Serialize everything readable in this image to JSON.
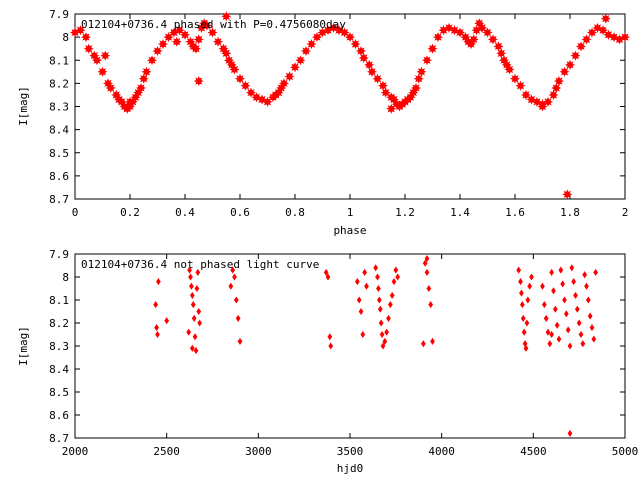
{
  "chart_data": [
    {
      "type": "scatter",
      "title": "012104+0736.4 phased with P=0.4756080day",
      "xlabel": "phase",
      "ylabel": "I[mag]",
      "xlim": [
        0,
        2
      ],
      "ylim": [
        8.7,
        7.9
      ],
      "y_inverted": true,
      "xticks": [
        "0",
        "0.2",
        "0.4",
        "0.6",
        "0.8",
        "1",
        "1.2",
        "1.4",
        "1.6",
        "1.8",
        "2"
      ],
      "yticks": [
        "7.9",
        "8",
        "8.1",
        "8.2",
        "8.3",
        "8.4",
        "8.5",
        "8.6",
        "8.7"
      ],
      "marker": "star",
      "color": "#ff0000",
      "grid": false,
      "series": [
        {
          "x": [
            0.0,
            0.02,
            0.04,
            0.05,
            0.07,
            0.08,
            0.1,
            0.12,
            0.13,
            0.15,
            0.16,
            0.17,
            0.18,
            0.19,
            0.2,
            0.21,
            0.22,
            0.23,
            0.24,
            0.25,
            0.26,
            0.28,
            0.3,
            0.32,
            0.34,
            0.36,
            0.38,
            0.4,
            0.42,
            0.43,
            0.44,
            0.45,
            0.46,
            0.47,
            0.48,
            0.5,
            0.52,
            0.54,
            0.55,
            0.56,
            0.57,
            0.58,
            0.6,
            0.62,
            0.64,
            0.66,
            0.68,
            0.7,
            0.72,
            0.74,
            0.75,
            0.76,
            0.78,
            0.8,
            0.82,
            0.84,
            0.86,
            0.88,
            0.9,
            0.92,
            0.94,
            0.96,
            0.98,
            1.0,
            1.02,
            1.04,
            1.05,
            1.07,
            1.08,
            1.1,
            1.12,
            1.13,
            1.15,
            1.16,
            1.17,
            1.18,
            1.19,
            1.2,
            1.21,
            1.22,
            1.23,
            1.24,
            1.25,
            1.26,
            1.28,
            1.3,
            1.32,
            1.34,
            1.36,
            1.38,
            1.4,
            1.42,
            1.43,
            1.44,
            1.45,
            1.46,
            1.47,
            1.48,
            1.5,
            1.52,
            1.54,
            1.55,
            1.56,
            1.57,
            1.58,
            1.6,
            1.62,
            1.64,
            1.66,
            1.68,
            1.7,
            1.72,
            1.74,
            1.75,
            1.76,
            1.78,
            1.79,
            1.8,
            1.82,
            1.84,
            1.86,
            1.88,
            1.9,
            1.92,
            1.94,
            1.96,
            1.98,
            2.0,
            0.45,
            0.2,
            0.73,
            0.55,
            0.11,
            1.15,
            1.48,
            1.7,
            1.93,
            0.37
          ],
          "y": [
            7.98,
            7.97,
            8.0,
            8.05,
            8.08,
            8.1,
            8.15,
            8.2,
            8.22,
            8.25,
            8.27,
            8.28,
            8.3,
            8.31,
            8.3,
            8.28,
            8.26,
            8.24,
            8.22,
            8.18,
            8.15,
            8.1,
            8.06,
            8.03,
            8.0,
            7.98,
            7.97,
            7.99,
            8.02,
            8.04,
            8.05,
            8.01,
            7.96,
            7.94,
            7.95,
            7.98,
            8.02,
            8.05,
            8.07,
            8.1,
            8.12,
            8.14,
            8.18,
            8.21,
            8.24,
            8.26,
            8.27,
            8.28,
            8.26,
            8.24,
            8.22,
            8.2,
            8.17,
            8.13,
            8.1,
            8.06,
            8.03,
            8.0,
            7.98,
            7.97,
            7.96,
            7.97,
            7.98,
            8.0,
            8.03,
            8.06,
            8.09,
            8.12,
            8.15,
            8.18,
            8.21,
            8.24,
            8.26,
            8.27,
            8.29,
            8.3,
            8.29,
            8.28,
            8.27,
            8.26,
            8.24,
            8.22,
            8.18,
            8.15,
            8.1,
            8.05,
            8.0,
            7.97,
            7.96,
            7.97,
            7.98,
            8.0,
            8.02,
            8.03,
            8.01,
            7.97,
            7.94,
            7.96,
            7.98,
            8.01,
            8.04,
            8.07,
            8.1,
            8.12,
            8.14,
            8.18,
            8.21,
            8.25,
            8.27,
            8.28,
            8.3,
            8.28,
            8.25,
            8.22,
            8.19,
            8.15,
            8.68,
            8.12,
            8.08,
            8.04,
            8.01,
            7.98,
            7.96,
            7.97,
            7.99,
            8.0,
            8.01,
            8.0,
            8.19,
            8.28,
            8.25,
            7.91,
            8.08,
            8.31,
            7.96,
            8.29,
            7.92,
            8.02
          ]
        }
      ]
    },
    {
      "type": "scatter",
      "title": "012104+0736.4 not phased light curve",
      "xlabel": "hjd0",
      "ylabel": "I[mag]",
      "xlim": [
        2000,
        5000
      ],
      "ylim": [
        8.7,
        7.9
      ],
      "y_inverted": true,
      "xticks": [
        "2000",
        "2500",
        "3000",
        "3500",
        "4000",
        "4500",
        "5000"
      ],
      "yticks": [
        "7.9",
        "8",
        "8.1",
        "8.2",
        "8.3",
        "8.4",
        "8.5",
        "8.6",
        "8.7"
      ],
      "marker": "diamond",
      "color": "#ff0000",
      "grid": false,
      "series": [
        {
          "x": [
            2440,
            2445,
            2450,
            2455,
            2500,
            2620,
            2625,
            2630,
            2635,
            2640,
            2645,
            2650,
            2655,
            2660,
            2665,
            2670,
            2675,
            2680,
            2850,
            2860,
            2870,
            2880,
            2890,
            2900,
            3370,
            3380,
            3390,
            3395,
            3540,
            3550,
            3560,
            3570,
            3580,
            3590,
            3640,
            3650,
            3655,
            3660,
            3665,
            3670,
            3675,
            3680,
            3690,
            3700,
            3710,
            3720,
            3730,
            3740,
            3750,
            3760,
            3900,
            3910,
            3920,
            3930,
            3940,
            3950,
            4420,
            4430,
            4435,
            4440,
            4445,
            4450,
            4455,
            4460,
            4465,
            4470,
            4480,
            4490,
            4550,
            4560,
            4570,
            4580,
            4590,
            4600,
            4610,
            4620,
            4630,
            4640,
            4650,
            4660,
            4670,
            4680,
            4690,
            4700,
            4710,
            4720,
            4730,
            4740,
            4750,
            4760,
            4770,
            4780,
            4790,
            4800,
            4810,
            4820,
            4830,
            4840,
            4700,
            2640,
            3920,
            4600
          ],
          "y": [
            8.12,
            8.22,
            8.25,
            8.02,
            8.19,
            8.24,
            7.97,
            8.0,
            8.04,
            8.08,
            8.12,
            8.18,
            8.26,
            8.32,
            8.05,
            7.98,
            8.15,
            8.2,
            8.04,
            7.97,
            8.0,
            8.1,
            8.18,
            8.28,
            7.98,
            8.0,
            8.26,
            8.3,
            8.02,
            8.1,
            8.15,
            8.25,
            7.98,
            8.04,
            7.96,
            8.0,
            8.05,
            8.1,
            8.14,
            8.2,
            8.25,
            8.3,
            8.28,
            8.24,
            8.18,
            8.12,
            8.08,
            8.02,
            7.97,
            8.0,
            8.29,
            7.94,
            7.98,
            8.05,
            8.12,
            8.28,
            7.97,
            8.02,
            8.07,
            8.12,
            8.18,
            8.24,
            8.29,
            8.31,
            8.2,
            8.1,
            8.04,
            8.0,
            8.04,
            8.12,
            8.18,
            8.24,
            8.29,
            7.98,
            8.06,
            8.14,
            8.21,
            8.27,
            7.97,
            8.03,
            8.1,
            8.16,
            8.23,
            8.3,
            7.96,
            8.02,
            8.08,
            8.14,
            8.2,
            8.25,
            8.29,
            7.99,
            8.04,
            8.1,
            8.17,
            8.22,
            8.27,
            7.98,
            8.68,
            8.31,
            7.92,
            8.25
          ]
        }
      ]
    }
  ]
}
